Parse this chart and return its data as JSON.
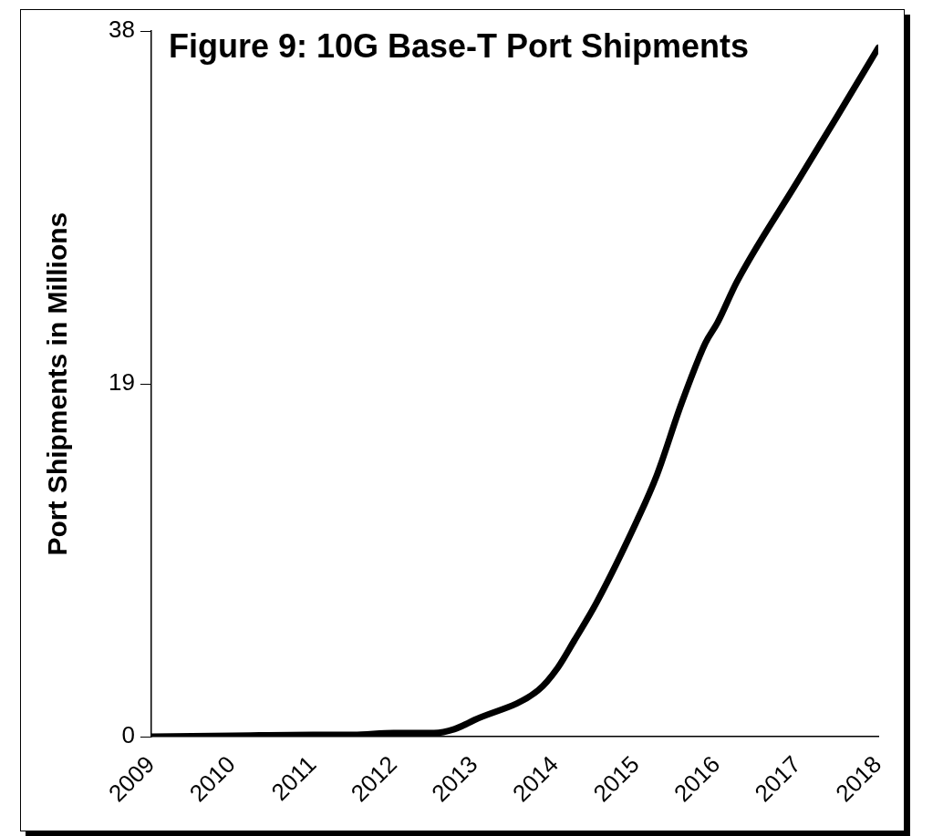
{
  "chart_data": {
    "type": "line",
    "title": "Figure 9: 10G Base-T Port Shipments",
    "ylabel": "Port Shipments in Millions",
    "x": [
      2009,
      2010,
      2011,
      2011.5,
      2012,
      2012.5,
      2012.75,
      2013,
      2013.79,
      2014.03,
      2014.24,
      2014.51,
      2015.02,
      2015.26,
      2015.56,
      2015.86,
      2016.01,
      2016.25,
      2017,
      2017.49,
      2018
    ],
    "series": [
      {
        "color": "#000000",
        "values": [
          0,
          0.05,
          0.1,
          0.1,
          0.2,
          0.2,
          0.4,
          0.9,
          2.5,
          3.7,
          5.2,
          7.2,
          11.7,
          14.1,
          17.9,
          21.2,
          22.3,
          24.5,
          29.9,
          33.4,
          37.1
        ]
      }
    ],
    "xlim": [
      2009,
      2018
    ],
    "xticks": [
      2009,
      2010,
      2011,
      2012,
      2013,
      2014,
      2015,
      2016,
      2017,
      2018
    ],
    "ylim": [
      0,
      38
    ],
    "yticks": [
      0,
      19,
      38
    ],
    "grid": false,
    "legend": false,
    "marker": "none",
    "line_style": "solid"
  }
}
